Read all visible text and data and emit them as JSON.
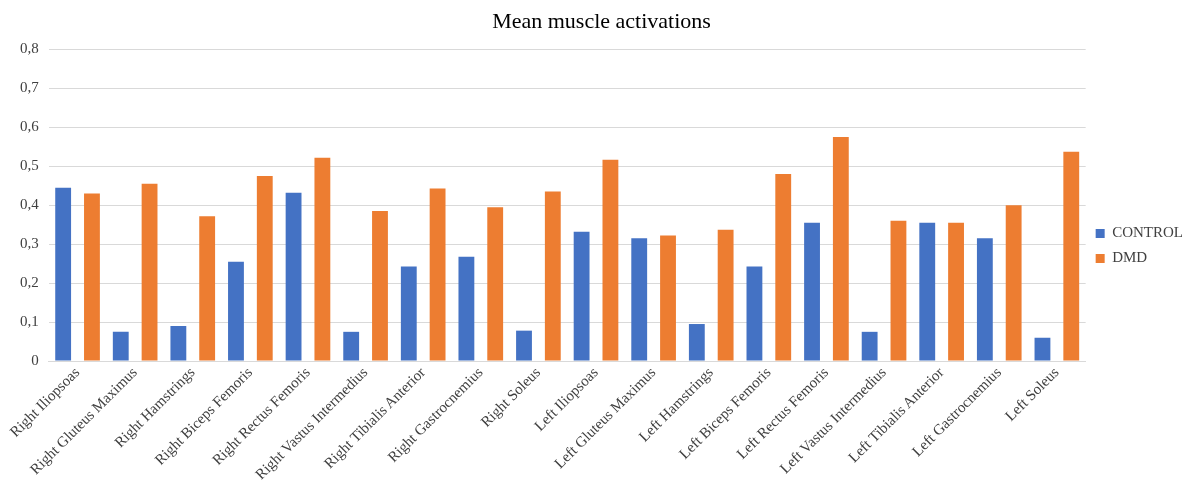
{
  "chart_data": {
    "type": "bar",
    "title": "Mean muscle activations",
    "categories": [
      "Right Iliopsoas",
      "Right Gluteus Maximus",
      "Right Hamstrings",
      "Right Biceps Femoris",
      "Right Rectus Femoris",
      "Right Vastus Intermedius",
      "Right Tibialis Anterior",
      "Right Gastrocnemius",
      "Right Soleus",
      "Left Iliopsoas",
      "Left Gluteus Maximus",
      "Left Hamstrings",
      "Left Biceps Femoris",
      "Left Rectus Femoris",
      "Left Vastus Intermedius",
      "Left Tibialis Anterior",
      "Left Gastrocnemius",
      "Left Soleus"
    ],
    "series": [
      {
        "name": "CONTROL",
        "color": "#4472c4",
        "values": [
          0.445,
          0.075,
          0.09,
          0.255,
          0.432,
          0.075,
          0.243,
          0.268,
          0.078,
          0.332,
          0.315,
          0.095,
          0.243,
          0.355,
          0.075,
          0.355,
          0.315,
          0.06
        ]
      },
      {
        "name": "DMD",
        "color": "#ed7d31",
        "values": [
          0.43,
          0.455,
          0.372,
          0.475,
          0.522,
          0.385,
          0.443,
          0.395,
          0.435,
          0.517,
          0.322,
          0.337,
          0.48,
          0.575,
          0.36,
          0.355,
          0.4,
          0.537
        ]
      }
    ],
    "ylim": [
      0,
      0.8
    ],
    "yticks": [
      {
        "value": 0,
        "label": "0"
      },
      {
        "value": 0.1,
        "label": "0,1"
      },
      {
        "value": 0.2,
        "label": "0,2"
      },
      {
        "value": 0.3,
        "label": "0,3"
      },
      {
        "value": 0.4,
        "label": "0,4"
      },
      {
        "value": 0.5,
        "label": "0,5"
      },
      {
        "value": 0.6,
        "label": "0,6"
      },
      {
        "value": 0.7,
        "label": "0,7"
      },
      {
        "value": 0.8,
        "label": "0,8"
      }
    ],
    "grid": "y",
    "legend": "right"
  }
}
